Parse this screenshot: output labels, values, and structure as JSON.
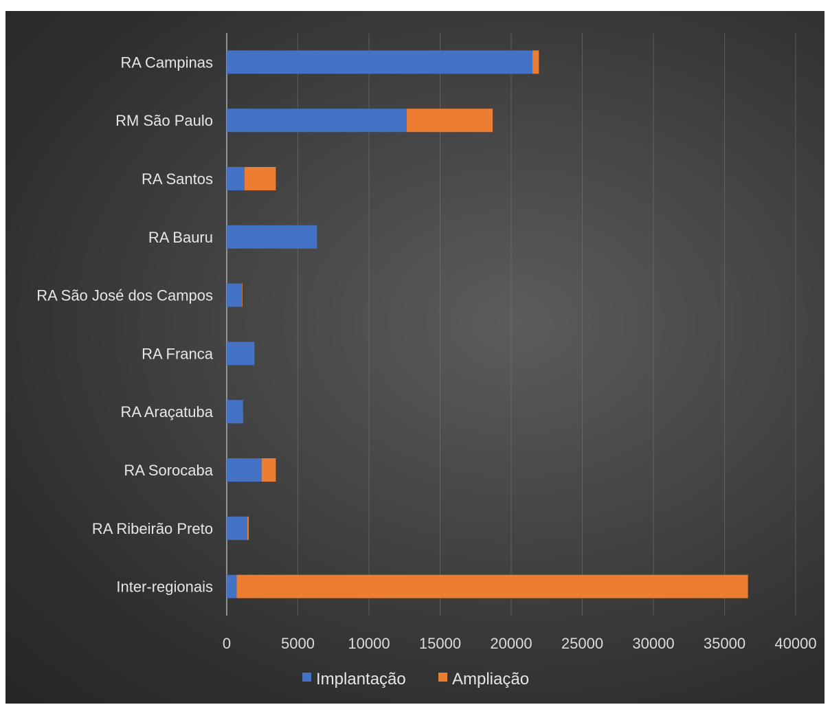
{
  "chart_data": {
    "type": "bar",
    "orientation": "horizontal",
    "stacked": true,
    "title": "",
    "xlabel": "",
    "ylabel": "",
    "categories": [
      "RA Campinas",
      "RM São Paulo",
      "RA Santos",
      "RA Bauru",
      "RA São José dos Campos",
      "RA Franca",
      "RA Araçatuba",
      "RA Sorocaba",
      "RA Ribeirão Preto",
      "Inter-regionais"
    ],
    "series": [
      {
        "name": "Implantação",
        "color": "#4472c4",
        "values": [
          21500,
          12650,
          1250,
          6350,
          1050,
          1950,
          1150,
          2450,
          1450,
          700
        ]
      },
      {
        "name": "Ampliação",
        "color": "#ed7d31",
        "values": [
          450,
          6050,
          2200,
          0,
          50,
          0,
          0,
          1000,
          100,
          35950
        ]
      }
    ],
    "xlim": [
      0,
      40000
    ],
    "xticks": [
      "0",
      "5000",
      "10000",
      "15000",
      "20000",
      "25000",
      "30000",
      "35000",
      "40000"
    ],
    "grid": true,
    "legend": "bottom"
  }
}
